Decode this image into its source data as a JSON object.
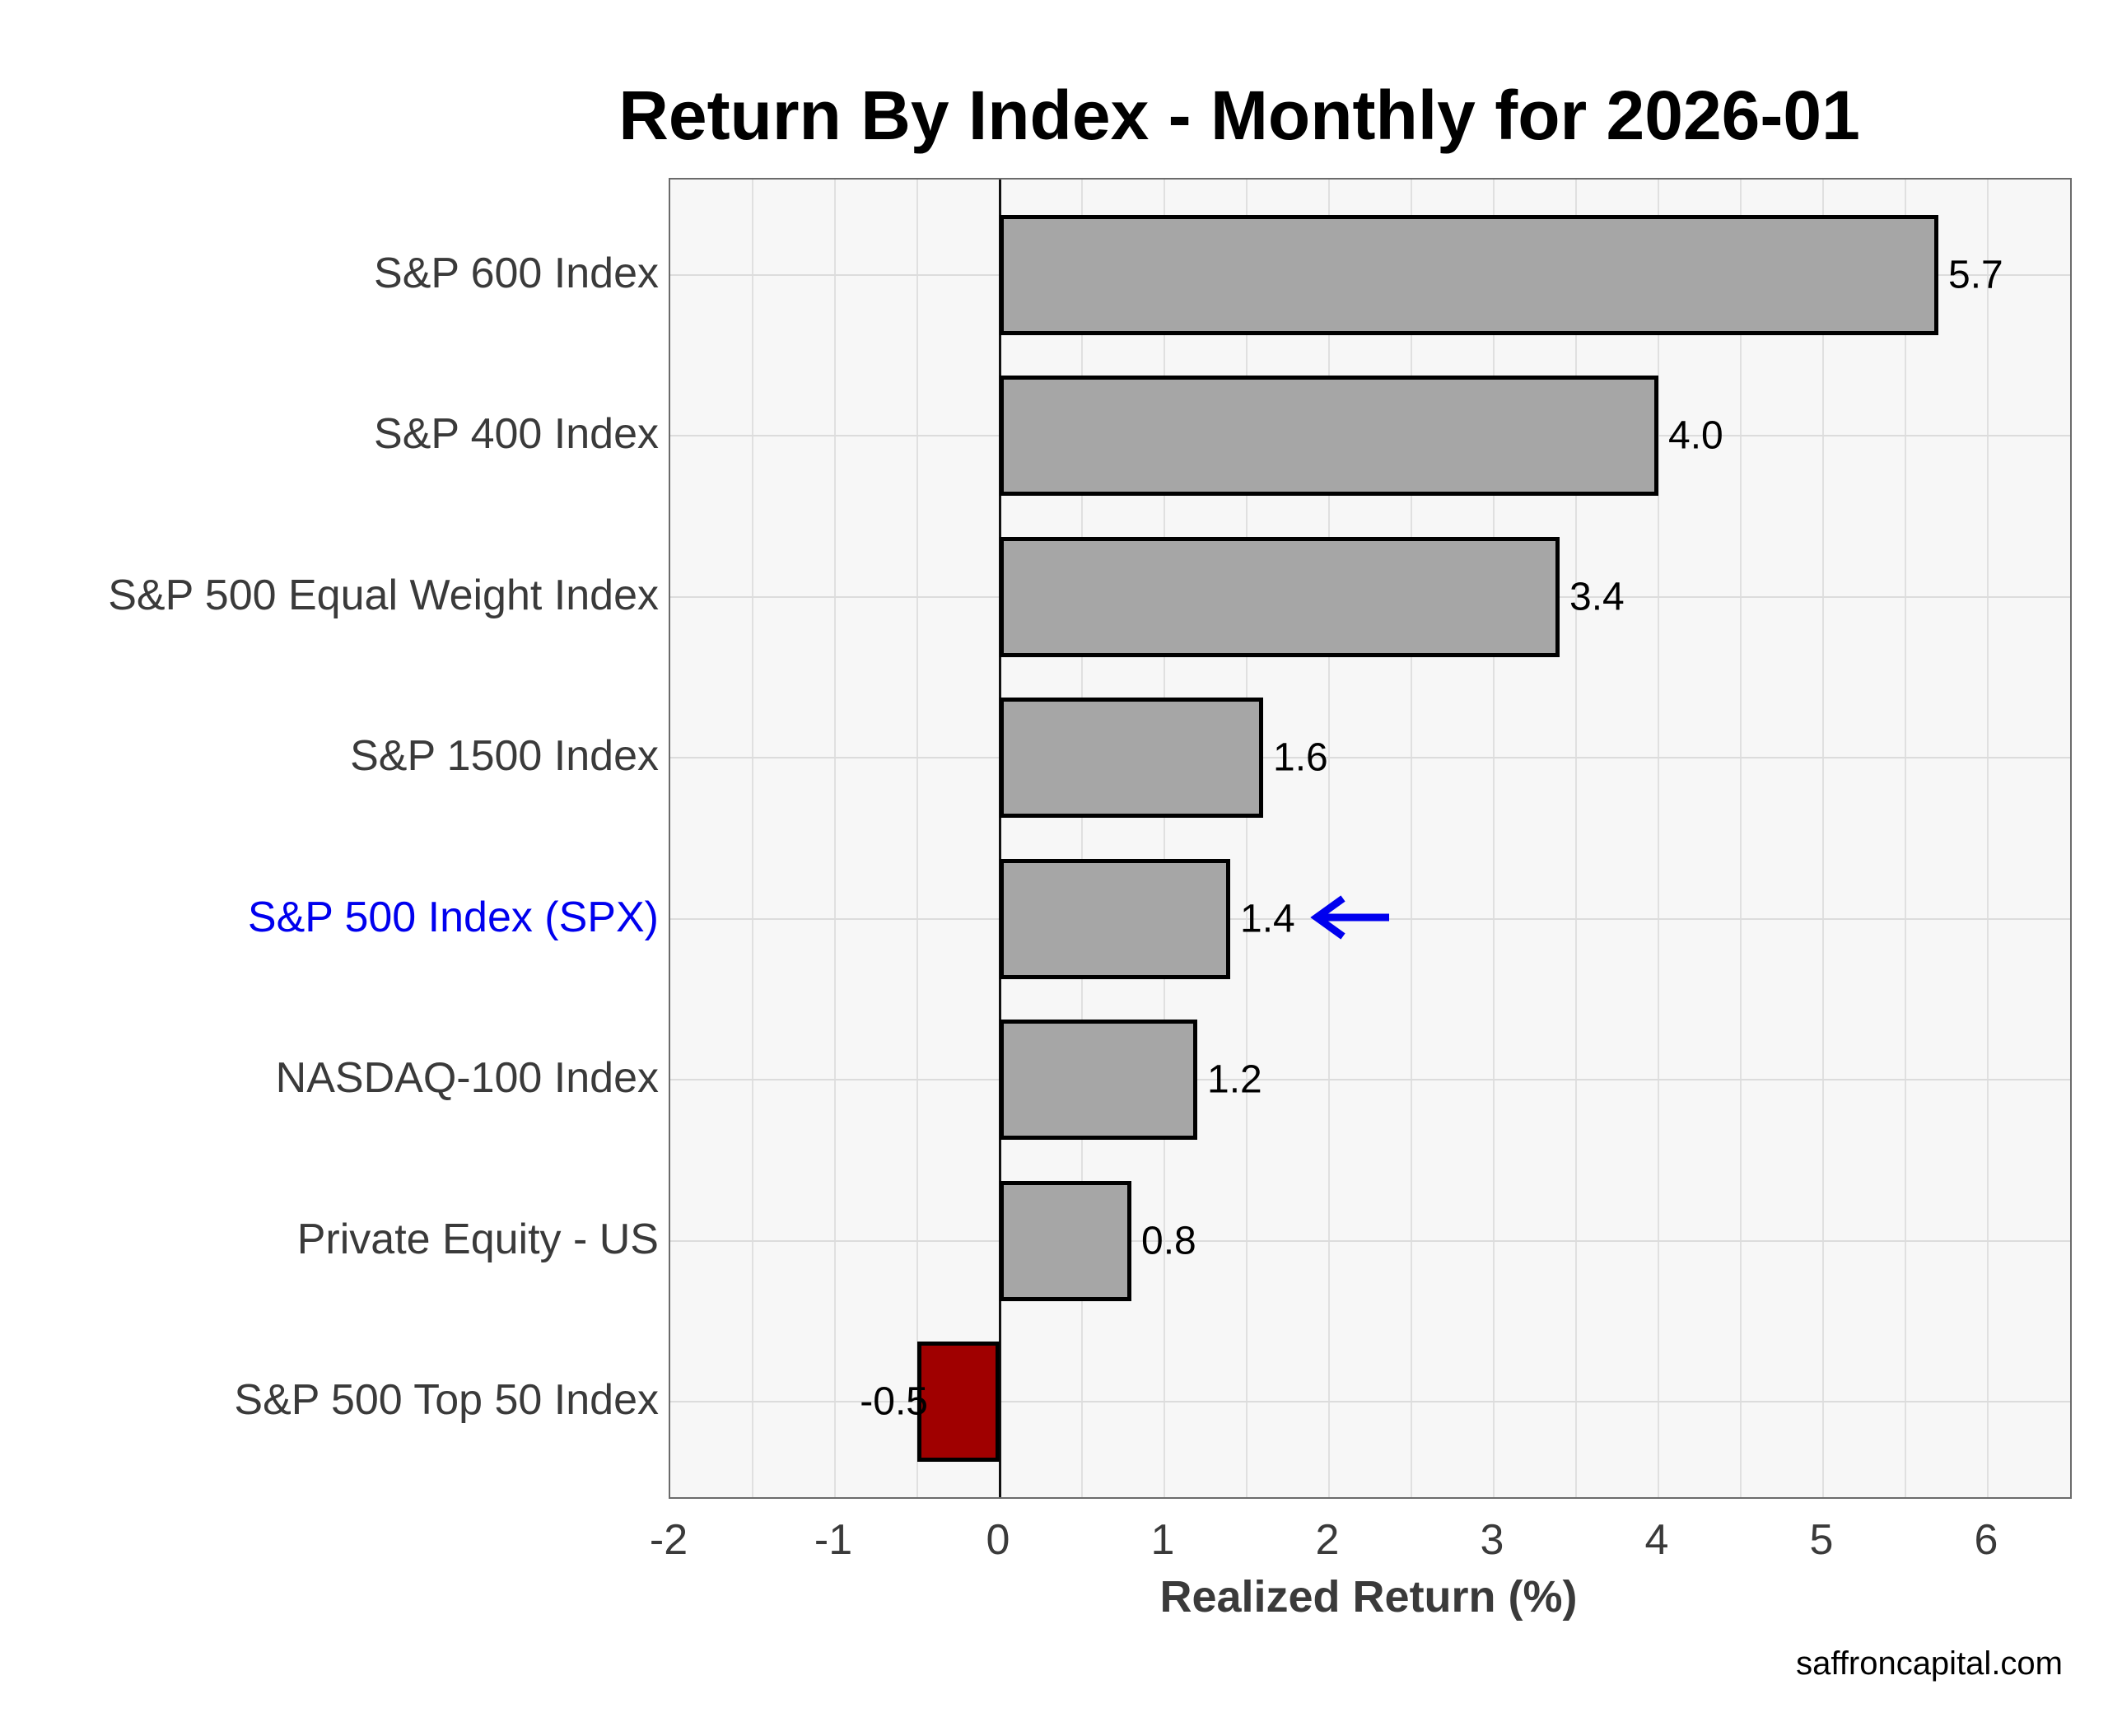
{
  "title": "Return By Index - Monthly for 2026-01",
  "watermark": "saffroncapital.com",
  "chart_data": {
    "type": "bar",
    "orientation": "horizontal",
    "title": "Return By Index - Monthly for 2026-01",
    "xlabel": "Realized Return (%)",
    "ylabel": "",
    "categories": [
      "S&P 600 Index",
      "S&P 400 Index",
      "S&P 500 Equal Weight Index",
      "S&P 1500 Index",
      "S&P 500 Index (SPX)",
      "NASDAQ-100 Index",
      "Private Equity - US",
      "S&P 500 Top 50 Index"
    ],
    "values": [
      5.7,
      4.0,
      3.4,
      1.6,
      1.4,
      1.2,
      0.8,
      -0.5
    ],
    "value_labels": [
      "5.7",
      "4.0",
      "3.4",
      "1.6",
      "1.4",
      "1.2",
      "0.8",
      "-0.5"
    ],
    "xlim": [
      -2,
      6.5
    ],
    "xticks": [
      -2,
      -1,
      0,
      1,
      2,
      3,
      4,
      5,
      6
    ],
    "xtick_labels": [
      "-2",
      "-1",
      "0",
      "1",
      "2",
      "3",
      "4",
      "5",
      "6"
    ],
    "minor_grid_step": 0.5,
    "grid": true,
    "legend": "none",
    "highlight_index": 4,
    "colors": {
      "bar": "#a6a6a6",
      "negative_bar": "#a00000",
      "bar_edge": "#000000",
      "highlight": "#0000ee",
      "label_text": "#3a3a3a",
      "zero_line": "#111111"
    },
    "annotation": {
      "type": "left-arrow",
      "target_index": 4,
      "color": "#0000ee"
    }
  }
}
